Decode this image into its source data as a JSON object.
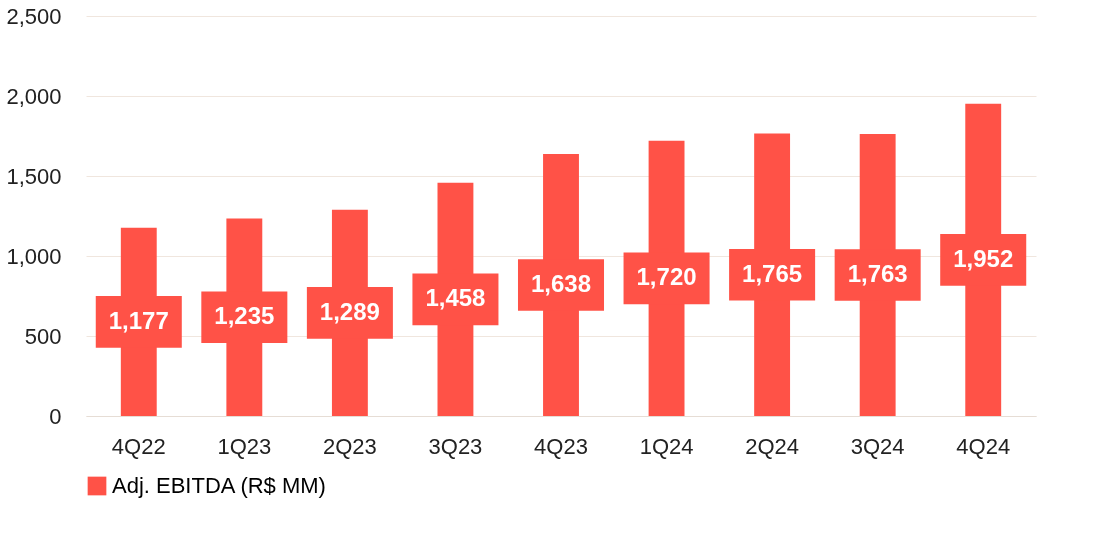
{
  "chart_data": {
    "type": "bar",
    "categories": [
      "4Q22",
      "1Q23",
      "2Q23",
      "3Q23",
      "4Q23",
      "1Q24",
      "2Q24",
      "3Q24",
      "4Q24"
    ],
    "series": [
      {
        "name": "Adj. EBITDA (R$ MM)",
        "color": "#ff5247",
        "values": [
          1177,
          1235,
          1289,
          1458,
          1638,
          1720,
          1765,
          1763,
          1952
        ],
        "value_labels": [
          "1,177",
          "1,235",
          "1,289",
          "1,458",
          "1,638",
          "1,720",
          "1,765",
          "1,763",
          "1,952"
        ]
      }
    ],
    "ylim": [
      0,
      2500
    ],
    "yticks": [
      0,
      {
        "value": 500,
        "label": "500"
      },
      {
        "value": 1000,
        "label": "1,000"
      },
      {
        "value": 1500,
        "label": "1,500"
      },
      {
        "value": 2000,
        "label": "2,000"
      },
      {
        "value": 2500,
        "label": "2,500"
      }
    ],
    "grid": "y",
    "legend": "bottom"
  }
}
